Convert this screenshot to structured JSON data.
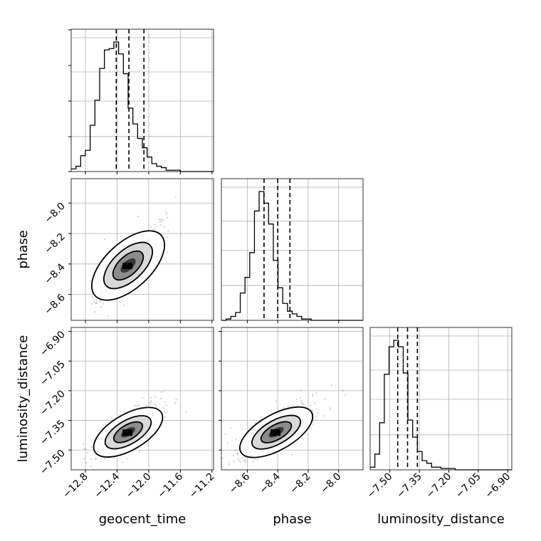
{
  "chart_data": {
    "type": "corner",
    "parameters": [
      {
        "name": "geocent_time",
        "xlabel": "geocent_time",
        "range": [
          -12.98,
          -11.18
        ],
        "ticks": [
          "-12.8",
          "-12.4",
          "-12.0",
          "-11.6",
          "-11.2"
        ],
        "tick_values": [
          -12.8,
          -12.4,
          -12.0,
          -11.6,
          -11.2
        ],
        "quantiles": [
          -12.41,
          -12.25,
          -12.06
        ],
        "hist_edges_start": -12.98,
        "hist_bin_width": 0.06,
        "hist_counts": [
          2,
          4,
          12,
          16,
          35,
          54,
          78,
          92,
          93,
          98,
          89,
          74,
          48,
          36,
          25,
          18,
          11,
          6,
          4,
          3,
          1,
          1,
          1,
          0,
          0,
          0,
          0,
          0,
          0,
          0
        ]
      },
      {
        "name": "phase",
        "xlabel": "phase",
        "ylabel": "phase",
        "range": [
          -8.77,
          -7.84
        ],
        "ticks": [
          "-8.6",
          "-8.4",
          "-8.2",
          "-8.0"
        ],
        "tick_values": [
          -8.6,
          -8.4,
          -8.2,
          -8.0
        ],
        "quantiles": [
          -8.49,
          -8.4,
          -8.32
        ],
        "hist_edges_start": -8.77,
        "hist_bin_width": 0.031,
        "hist_counts": [
          0,
          1,
          3,
          6,
          21,
          33,
          52,
          84,
          99,
          90,
          74,
          46,
          25,
          13,
          7,
          5,
          3,
          1,
          1,
          0,
          0,
          0,
          0,
          0,
          0,
          0,
          0,
          0,
          0,
          0
        ]
      },
      {
        "name": "luminosity_distance",
        "xlabel": "luminosity_distance",
        "ylabel": "luminosity_distance",
        "range": [
          -7.6,
          -6.88
        ],
        "ticks": [
          "-7.50",
          "-7.35",
          "-7.20",
          "-7.05",
          "-6.90"
        ],
        "tick_values": [
          -7.5,
          -7.35,
          -7.2,
          -7.05,
          -6.9
        ],
        "quantiles": [
          -7.46,
          -7.41,
          -7.36
        ],
        "hist_edges_start": -7.6,
        "hist_bin_width": 0.024,
        "hist_counts": [
          2,
          12,
          36,
          73,
          94,
          99,
          94,
          74,
          38,
          25,
          14,
          7,
          5,
          2,
          2,
          1,
          1,
          1,
          0,
          0,
          0,
          0,
          0,
          0,
          0,
          0,
          0,
          0,
          0,
          0
        ]
      }
    ],
    "pair_correlations": {
      "phase|geocent_time": {
        "mean_x": -12.26,
        "mean_y": -8.41,
        "sd_x": 0.16,
        "sd_y": 0.09,
        "rho": 0.85
      },
      "luminosity_distance|geocent_time": {
        "mean_x": -12.26,
        "mean_y": -7.41,
        "sd_x": 0.16,
        "sd_y": 0.05,
        "rho": 0.75
      },
      "luminosity_distance|phase": {
        "mean_x": -8.41,
        "mean_y": -7.41,
        "sd_x": 0.09,
        "sd_y": 0.05,
        "rho": 0.78
      }
    },
    "grid": true,
    "quantile_line_style": "dashed",
    "contour_levels": 3
  }
}
